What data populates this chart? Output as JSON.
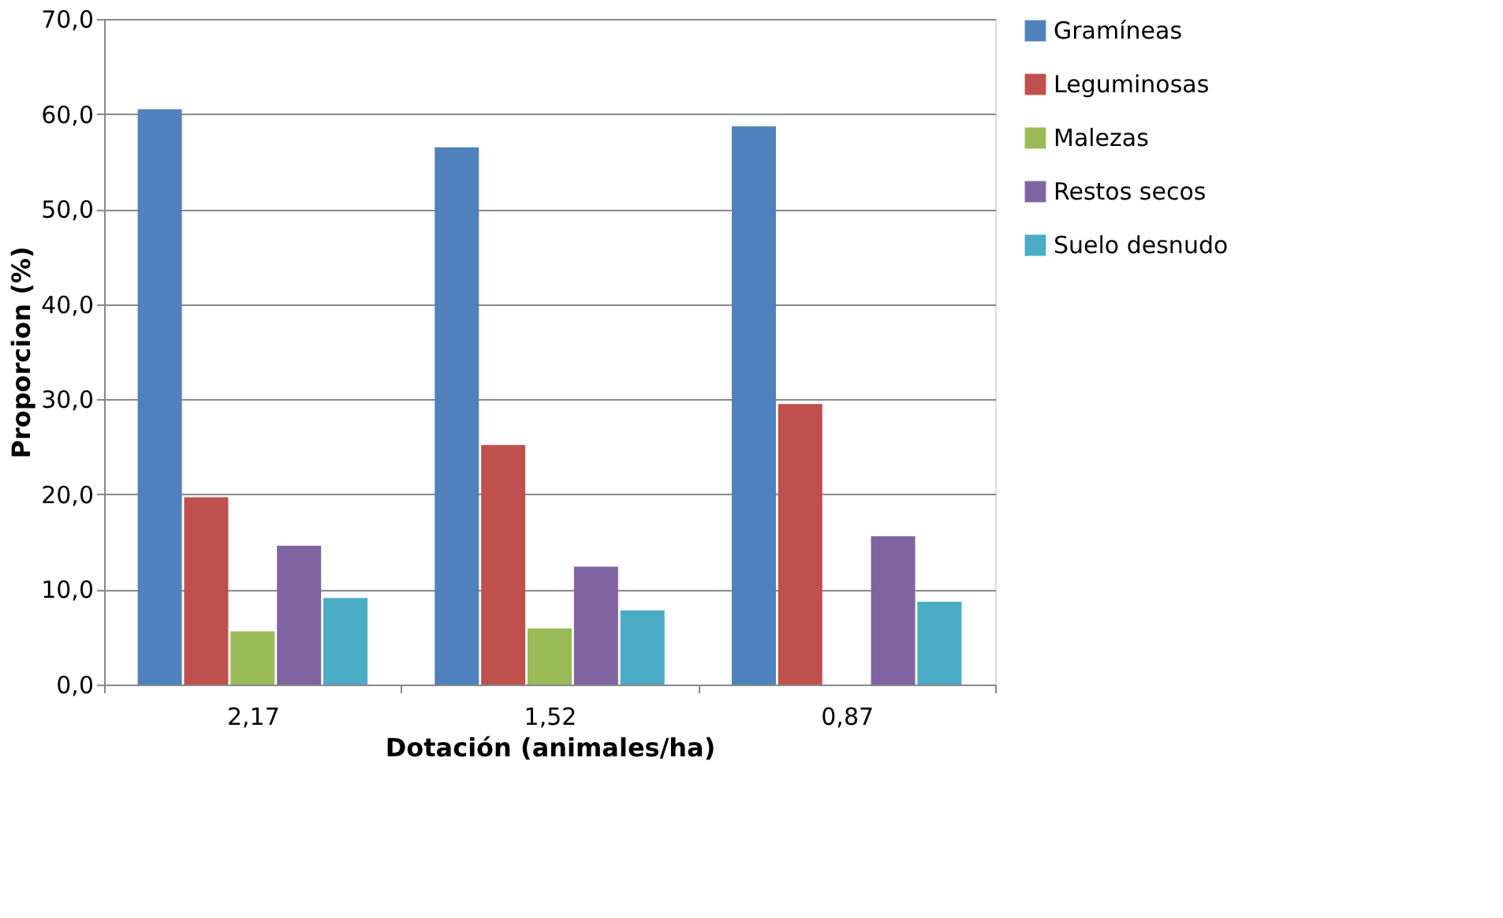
{
  "chart_data": {
    "type": "bar",
    "xlabel": "Dotación (animales/ha)",
    "ylabel": "Proporcion (%)",
    "categories": [
      "2,17",
      "1,52",
      "0,87"
    ],
    "series": [
      {
        "name": "Gramíneas",
        "color": "#4f81bd",
        "values": [
          60.5,
          56.5,
          58.7
        ]
      },
      {
        "name": "Leguminosas",
        "color": "#c0504d",
        "values": [
          19.7,
          25.2,
          29.5
        ]
      },
      {
        "name": "Malezas",
        "color": "#9bbb59",
        "values": [
          5.6,
          5.9,
          null
        ]
      },
      {
        "name": "Restos secos",
        "color": "#8064a2",
        "values": [
          14.6,
          12.4,
          15.6
        ]
      },
      {
        "name": "Suelo desnudo",
        "color": "#4bacc6",
        "values": [
          9.1,
          7.8,
          8.7
        ]
      }
    ],
    "ylim": [
      0,
      70
    ],
    "yticks": [
      {
        "value": 0,
        "label": "0,0"
      },
      {
        "value": 10,
        "label": "10,0"
      },
      {
        "value": 20,
        "label": "20,0"
      },
      {
        "value": 30,
        "label": "30,0"
      },
      {
        "value": 40,
        "label": "40,0"
      },
      {
        "value": 50,
        "label": "50,0"
      },
      {
        "value": 60,
        "label": "60,0"
      },
      {
        "value": 70,
        "label": "70,0"
      }
    ],
    "grid": "y",
    "legend": "right"
  }
}
